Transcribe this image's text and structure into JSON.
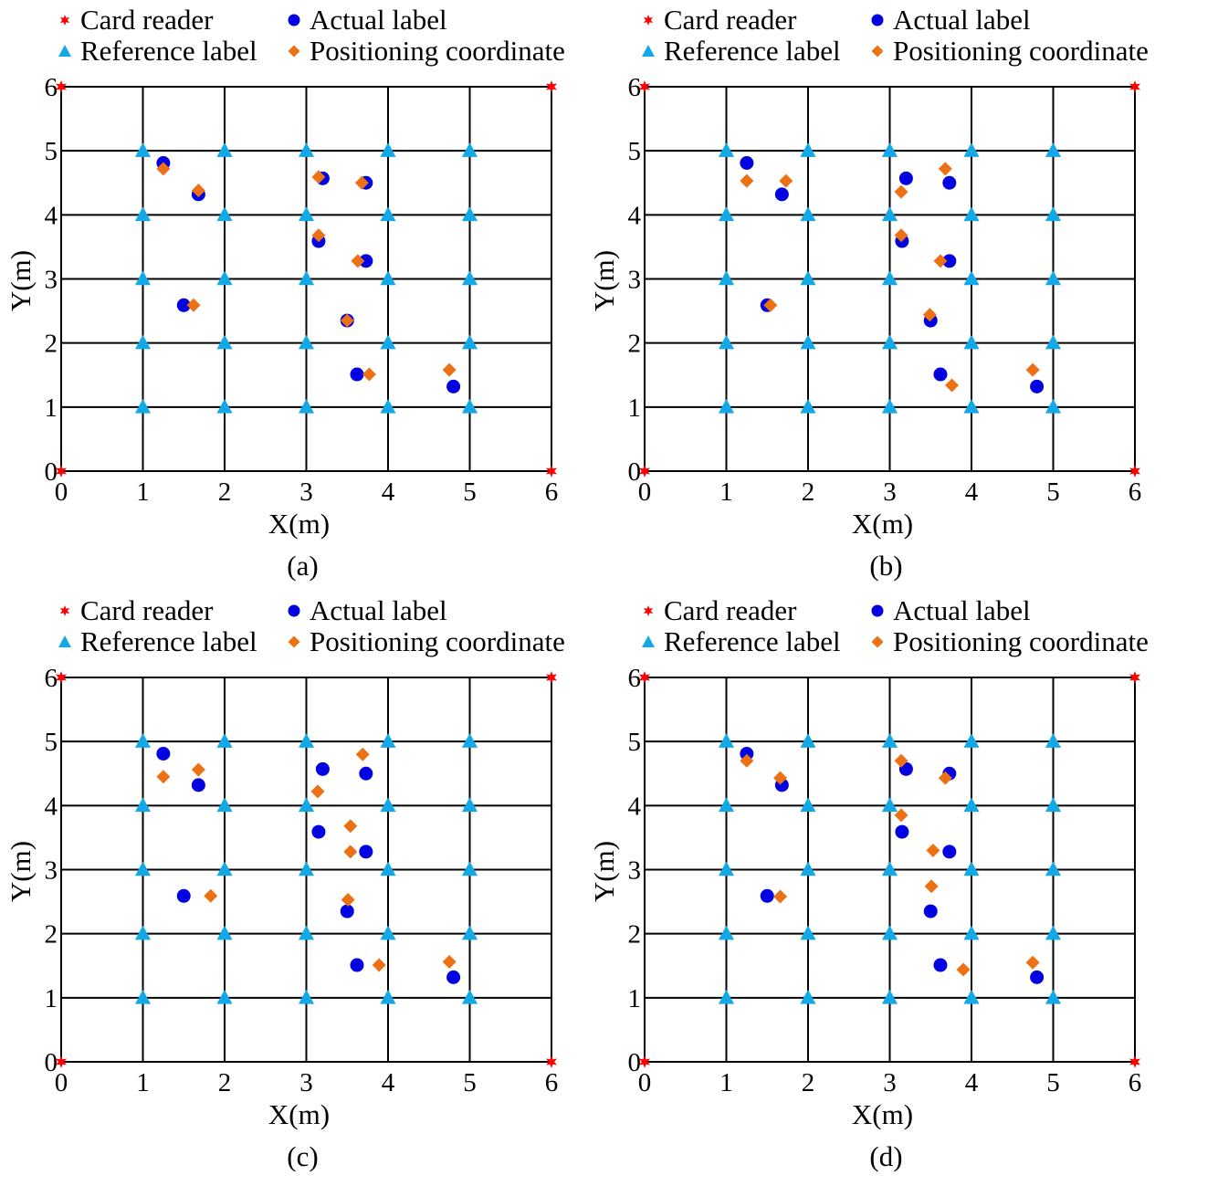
{
  "legend": {
    "card_reader": "Card reader",
    "actual_label": "Actual label",
    "reference_label": "Reference label",
    "positioning_coordinate": "Positioning coordinate"
  },
  "colors": {
    "card_reader": "#ff0000",
    "actual_label": "#0000e0",
    "reference_label": "#13a8e6",
    "positioning_coordinate": "#ec7014",
    "grid": "#000000"
  },
  "chart_data": [
    {
      "type": "scatter",
      "caption": "(a)",
      "xlabel": "X(m)",
      "ylabel": "Y(m)",
      "xlim": [
        0,
        6
      ],
      "ylim": [
        0,
        6
      ],
      "xticks": [
        "0",
        "1",
        "2",
        "3",
        "4",
        "5",
        "6"
      ],
      "yticks": [
        "0",
        "1",
        "2",
        "3",
        "4",
        "5",
        "6"
      ],
      "grid": true,
      "legend_position": "top",
      "series": [
        {
          "name": "Card reader",
          "key": "card_reader",
          "points": [
            [
              0,
              6
            ],
            [
              6,
              6
            ],
            [
              0,
              0
            ],
            [
              6,
              0
            ]
          ]
        },
        {
          "name": "Reference label",
          "key": "reference_label",
          "points": [
            [
              1,
              5
            ],
            [
              2,
              5
            ],
            [
              3,
              5
            ],
            [
              4,
              5
            ],
            [
              5,
              5
            ],
            [
              1,
              4
            ],
            [
              2,
              4
            ],
            [
              3,
              4
            ],
            [
              4,
              4
            ],
            [
              5,
              4
            ],
            [
              1,
              3
            ],
            [
              2,
              3
            ],
            [
              3,
              3
            ],
            [
              4,
              3
            ],
            [
              5,
              3
            ],
            [
              1,
              2
            ],
            [
              2,
              2
            ],
            [
              3,
              2
            ],
            [
              4,
              2
            ],
            [
              5,
              2
            ],
            [
              1,
              1
            ],
            [
              2,
              1
            ],
            [
              3,
              1
            ],
            [
              4,
              1
            ],
            [
              5,
              1
            ]
          ]
        },
        {
          "name": "Actual label",
          "key": "actual_label",
          "points": [
            [
              1.25,
              4.81
            ],
            [
              1.68,
              4.32
            ],
            [
              3.2,
              4.57
            ],
            [
              3.73,
              4.5
            ],
            [
              3.15,
              3.59
            ],
            [
              3.73,
              3.28
            ],
            [
              1.5,
              2.59
            ],
            [
              3.5,
              2.35
            ],
            [
              3.62,
              1.51
            ],
            [
              4.8,
              1.32
            ]
          ]
        },
        {
          "name": "Positioning coordinate",
          "key": "positioning_coordinate",
          "points": [
            [
              1.25,
              4.72
            ],
            [
              1.68,
              4.38
            ],
            [
              3.15,
              4.59
            ],
            [
              3.68,
              4.5
            ],
            [
              3.15,
              3.68
            ],
            [
              3.63,
              3.28
            ],
            [
              1.62,
              2.59
            ],
            [
              3.5,
              2.35
            ],
            [
              3.77,
              1.51
            ],
            [
              4.75,
              1.58
            ]
          ]
        }
      ]
    },
    {
      "type": "scatter",
      "caption": "(b)",
      "xlabel": "X(m)",
      "ylabel": "Y(m)",
      "xlim": [
        0,
        6
      ],
      "ylim": [
        0,
        6
      ],
      "xticks": [
        "0",
        "1",
        "2",
        "3",
        "4",
        "5",
        "6"
      ],
      "yticks": [
        "0",
        "1",
        "2",
        "3",
        "4",
        "5",
        "6"
      ],
      "grid": true,
      "legend_position": "top",
      "series": [
        {
          "name": "Card reader",
          "key": "card_reader",
          "points": [
            [
              0,
              6
            ],
            [
              6,
              6
            ],
            [
              0,
              0
            ],
            [
              6,
              0
            ]
          ]
        },
        {
          "name": "Reference label",
          "key": "reference_label",
          "points": [
            [
              1,
              5
            ],
            [
              2,
              5
            ],
            [
              3,
              5
            ],
            [
              4,
              5
            ],
            [
              5,
              5
            ],
            [
              1,
              4
            ],
            [
              2,
              4
            ],
            [
              3,
              4
            ],
            [
              4,
              4
            ],
            [
              5,
              4
            ],
            [
              1,
              3
            ],
            [
              2,
              3
            ],
            [
              3,
              3
            ],
            [
              4,
              3
            ],
            [
              5,
              3
            ],
            [
              1,
              2
            ],
            [
              2,
              2
            ],
            [
              3,
              2
            ],
            [
              4,
              2
            ],
            [
              5,
              2
            ],
            [
              1,
              1
            ],
            [
              2,
              1
            ],
            [
              3,
              1
            ],
            [
              4,
              1
            ],
            [
              5,
              1
            ]
          ]
        },
        {
          "name": "Actual label",
          "key": "actual_label",
          "points": [
            [
              1.25,
              4.81
            ],
            [
              1.68,
              4.32
            ],
            [
              3.2,
              4.57
            ],
            [
              3.73,
              4.5
            ],
            [
              3.15,
              3.59
            ],
            [
              3.73,
              3.28
            ],
            [
              1.5,
              2.59
            ],
            [
              3.5,
              2.35
            ],
            [
              3.62,
              1.51
            ],
            [
              4.8,
              1.32
            ]
          ]
        },
        {
          "name": "Positioning coordinate",
          "key": "positioning_coordinate",
          "points": [
            [
              1.25,
              4.53
            ],
            [
              1.73,
              4.53
            ],
            [
              3.14,
              4.36
            ],
            [
              3.68,
              4.72
            ],
            [
              3.14,
              3.68
            ],
            [
              3.62,
              3.28
            ],
            [
              1.54,
              2.59
            ],
            [
              3.49,
              2.44
            ],
            [
              3.76,
              1.34
            ],
            [
              4.75,
              1.58
            ]
          ]
        }
      ]
    },
    {
      "type": "scatter",
      "caption": "(c)",
      "xlabel": "X(m)",
      "ylabel": "Y(m)",
      "xlim": [
        0,
        6
      ],
      "ylim": [
        0,
        6
      ],
      "xticks": [
        "0",
        "1",
        "2",
        "3",
        "4",
        "5",
        "6"
      ],
      "yticks": [
        "0",
        "1",
        "2",
        "3",
        "4",
        "5",
        "6"
      ],
      "grid": true,
      "legend_position": "top",
      "series": [
        {
          "name": "Card reader",
          "key": "card_reader",
          "points": [
            [
              0,
              6
            ],
            [
              6,
              6
            ],
            [
              0,
              0
            ],
            [
              6,
              0
            ]
          ]
        },
        {
          "name": "Reference label",
          "key": "reference_label",
          "points": [
            [
              1,
              5
            ],
            [
              2,
              5
            ],
            [
              3,
              5
            ],
            [
              4,
              5
            ],
            [
              5,
              5
            ],
            [
              1,
              4
            ],
            [
              2,
              4
            ],
            [
              3,
              4
            ],
            [
              4,
              4
            ],
            [
              5,
              4
            ],
            [
              1,
              3
            ],
            [
              2,
              3
            ],
            [
              3,
              3
            ],
            [
              4,
              3
            ],
            [
              5,
              3
            ],
            [
              1,
              2
            ],
            [
              2,
              2
            ],
            [
              3,
              2
            ],
            [
              4,
              2
            ],
            [
              5,
              2
            ],
            [
              1,
              1
            ],
            [
              2,
              1
            ],
            [
              3,
              1
            ],
            [
              4,
              1
            ],
            [
              5,
              1
            ]
          ]
        },
        {
          "name": "Actual label",
          "key": "actual_label",
          "points": [
            [
              1.25,
              4.81
            ],
            [
              1.68,
              4.32
            ],
            [
              3.2,
              4.57
            ],
            [
              3.73,
              4.5
            ],
            [
              3.15,
              3.59
            ],
            [
              3.73,
              3.28
            ],
            [
              1.5,
              2.59
            ],
            [
              3.5,
              2.35
            ],
            [
              3.62,
              1.51
            ],
            [
              4.8,
              1.32
            ]
          ]
        },
        {
          "name": "Positioning coordinate",
          "key": "positioning_coordinate",
          "points": [
            [
              1.25,
              4.45
            ],
            [
              1.68,
              4.56
            ],
            [
              3.14,
              4.22
            ],
            [
              3.69,
              4.8
            ],
            [
              3.54,
              3.68
            ],
            [
              3.54,
              3.28
            ],
            [
              1.83,
              2.59
            ],
            [
              3.51,
              2.53
            ],
            [
              3.89,
              1.51
            ],
            [
              4.75,
              1.56
            ]
          ]
        }
      ]
    },
    {
      "type": "scatter",
      "caption": "(d)",
      "xlabel": "X(m)",
      "ylabel": "Y(m)",
      "xlim": [
        0,
        6
      ],
      "ylim": [
        0,
        6
      ],
      "xticks": [
        "0",
        "1",
        "2",
        "3",
        "4",
        "5",
        "6"
      ],
      "yticks": [
        "0",
        "1",
        "2",
        "3",
        "4",
        "5",
        "6"
      ],
      "grid": true,
      "legend_position": "top",
      "series": [
        {
          "name": "Card reader",
          "key": "card_reader",
          "points": [
            [
              0,
              6
            ],
            [
              6,
              6
            ],
            [
              0,
              0
            ],
            [
              6,
              0
            ]
          ]
        },
        {
          "name": "Reference label",
          "key": "reference_label",
          "points": [
            [
              1,
              5
            ],
            [
              2,
              5
            ],
            [
              3,
              5
            ],
            [
              4,
              5
            ],
            [
              5,
              5
            ],
            [
              1,
              4
            ],
            [
              2,
              4
            ],
            [
              3,
              4
            ],
            [
              4,
              4
            ],
            [
              5,
              4
            ],
            [
              1,
              3
            ],
            [
              2,
              3
            ],
            [
              3,
              3
            ],
            [
              4,
              3
            ],
            [
              5,
              3
            ],
            [
              1,
              2
            ],
            [
              2,
              2
            ],
            [
              3,
              2
            ],
            [
              4,
              2
            ],
            [
              5,
              2
            ],
            [
              1,
              1
            ],
            [
              2,
              1
            ],
            [
              3,
              1
            ],
            [
              4,
              1
            ],
            [
              5,
              1
            ]
          ]
        },
        {
          "name": "Actual label",
          "key": "actual_label",
          "points": [
            [
              1.25,
              4.81
            ],
            [
              1.68,
              4.32
            ],
            [
              3.2,
              4.57
            ],
            [
              3.73,
              4.5
            ],
            [
              3.15,
              3.59
            ],
            [
              3.73,
              3.28
            ],
            [
              1.5,
              2.59
            ],
            [
              3.5,
              2.35
            ],
            [
              3.62,
              1.51
            ],
            [
              4.8,
              1.32
            ]
          ]
        },
        {
          "name": "Positioning coordinate",
          "key": "positioning_coordinate",
          "points": [
            [
              1.25,
              4.7
            ],
            [
              1.66,
              4.43
            ],
            [
              3.14,
              4.7
            ],
            [
              3.68,
              4.43
            ],
            [
              3.14,
              3.85
            ],
            [
              3.53,
              3.3
            ],
            [
              1.66,
              2.58
            ],
            [
              3.51,
              2.74
            ],
            [
              3.9,
              1.44
            ],
            [
              4.75,
              1.55
            ]
          ]
        }
      ]
    }
  ]
}
